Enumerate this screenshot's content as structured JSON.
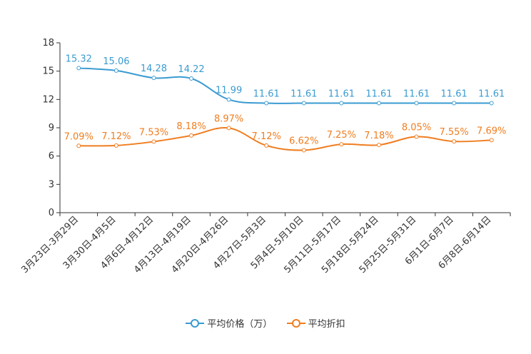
{
  "chart_data": {
    "type": "line",
    "categories": [
      "3月23日-3月29日",
      "3月30日-4月5日",
      "4月6日-4月12日",
      "4月13日-4月19日",
      "4月20日-4月26日",
      "4月27日-5月3日",
      "5月4日-5月10日",
      "5月11日-5月17日",
      "5月18日-5月24日",
      "5月25日-5月31日",
      "6月1日-6月7日",
      "6月8日-6月14日"
    ],
    "ylim": [
      0,
      18
    ],
    "yticks": [
      "0",
      "3",
      "6",
      "9",
      "12",
      "15",
      "18"
    ],
    "series": [
      {
        "name": "平均价格（万）",
        "color": "#3a9bd2",
        "values": [
          15.32,
          15.06,
          14.28,
          14.22,
          11.99,
          11.61,
          11.61,
          11.61,
          11.61,
          11.61,
          11.61,
          11.61
        ],
        "labels": [
          "15.32",
          "15.06",
          "14.28",
          "14.22",
          "11.99",
          "11.61",
          "11.61",
          "11.61",
          "11.61",
          "11.61",
          "11.61",
          "11.61"
        ]
      },
      {
        "name": "平均折扣",
        "color": "#f07d1f",
        "values": [
          7.09,
          7.12,
          7.53,
          8.18,
          8.97,
          7.12,
          6.62,
          7.25,
          7.18,
          8.05,
          7.55,
          7.69
        ],
        "labels": [
          "7.09%",
          "7.12%",
          "7.53%",
          "8.18%",
          "8.97%",
          "7.12%",
          "6.62%",
          "7.25%",
          "7.18%",
          "8.05%",
          "7.55%",
          "7.69%"
        ]
      }
    ]
  }
}
